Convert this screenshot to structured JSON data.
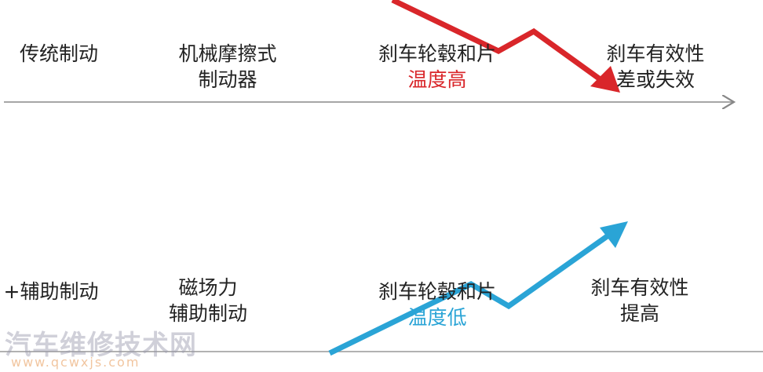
{
  "top_row": [
    {
      "lines": [
        "传统制动"
      ]
    },
    {
      "lines": [
        "机械摩擦式",
        "制动器"
      ]
    },
    {
      "lines": [
        "刹车轮毂和片",
        "温度高"
      ]
    },
    {
      "lines": [
        "刹车有效性",
        "差或失效"
      ]
    }
  ],
  "bottom_row": [
    {
      "lines": [
        "+辅助制动"
      ]
    },
    {
      "lines": [
        "磁场力",
        "辅助制动"
      ]
    },
    {
      "lines": [
        "刹车轮毂和片",
        "温度低"
      ]
    },
    {
      "lines": [
        "刹车有效性",
        "提高"
      ]
    }
  ],
  "watermark": {
    "title": "汽车维修技术网",
    "url": "www.qcwxjs.com"
  }
}
